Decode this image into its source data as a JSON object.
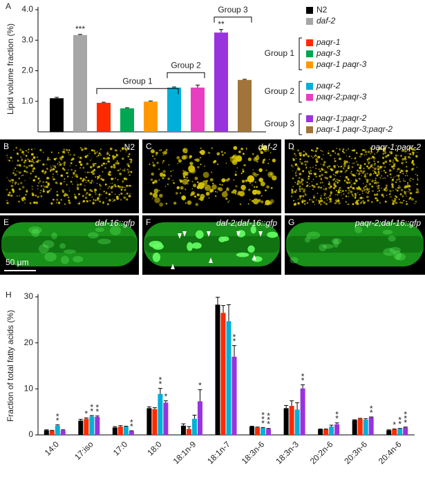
{
  "chart_data": [
    {
      "type": "bar",
      "panel": "A",
      "ylabel": "Lipid volume fraction (%)",
      "ylim": [
        0,
        4
      ],
      "yticks": [
        {
          "value": 1,
          "label": "1.0"
        },
        {
          "value": 2,
          "label": "2.0"
        },
        {
          "value": 3,
          "label": "3.0"
        },
        {
          "value": 4,
          "label": "4.0"
        }
      ],
      "categories": [
        null
      ],
      "series": [
        {
          "name": "N2",
          "color": "#000000",
          "values": [
            1.1
          ],
          "errors": [
            0.03
          ]
        },
        {
          "name": "daf-2",
          "italic": true,
          "color": "#a6a6a6",
          "values": [
            3.17
          ],
          "errors": [
            0.02
          ],
          "significance": [
            "***"
          ]
        },
        {
          "name": "paqr-1",
          "italic": true,
          "group": "Group 1",
          "color": "#ff2a00",
          "values": [
            0.95
          ],
          "errors": [
            0.02
          ]
        },
        {
          "name": "paqr-3",
          "italic": true,
          "group": "Group 1",
          "color": "#00a651",
          "values": [
            0.77
          ],
          "errors": [
            0.02
          ]
        },
        {
          "name": "paqr-1 paqr-3",
          "italic": true,
          "group": "Group 1",
          "color": "#ff9900",
          "values": [
            0.99
          ],
          "errors": [
            0.02
          ]
        },
        {
          "name": "paqr-2",
          "italic": true,
          "group": "Group 2",
          "color": "#00b0d8",
          "values": [
            1.45
          ],
          "errors": [
            0.02
          ]
        },
        {
          "name": "paqr-2;paqr-3",
          "italic": true,
          "group": "Group 2",
          "color": "#e83fc0",
          "values": [
            1.45
          ],
          "errors": [
            0.08
          ]
        },
        {
          "name": "paqr-1;paqr-2",
          "italic": true,
          "group": "Group 3",
          "color": "#9933dd",
          "values": [
            3.25
          ],
          "errors": [
            0.1
          ],
          "significance": [
            "**"
          ]
        },
        {
          "name": "paqr-1 paqr-3;paqr-2",
          "italic": true,
          "group": "Group 3",
          "color": "#a0743a",
          "values": [
            1.7
          ],
          "errors": [
            0.02
          ]
        }
      ]
    },
    {
      "type": "bar",
      "panel": "H",
      "ylabel": "Fraction of total fatty acids (%)",
      "ylim": [
        0,
        30
      ],
      "yticks": [
        0,
        10,
        20,
        30
      ],
      "categories": [
        "14:0",
        "17:iso",
        "17:0",
        "18:0",
        "18:1n-9",
        "18:1n-7",
        "18:3n-6",
        "18:3n-3",
        "20:2n-6",
        "20:3n-6",
        "20:4n-6"
      ],
      "series": [
        {
          "color": "#000000",
          "values": [
            1.0,
            3.1,
            1.6,
            5.8,
            2.0,
            28.3,
            1.8,
            5.8,
            1.2,
            3.2,
            1.0
          ],
          "errors": [
            0.1,
            0.3,
            0.2,
            0.3,
            0.4,
            1.6,
            0.1,
            0.6,
            0.1,
            0.1,
            0.1
          ],
          "significance": [
            null,
            null,
            null,
            null,
            null,
            null,
            null,
            null,
            null,
            null,
            null
          ]
        },
        {
          "color": "#ff2a00",
          "values": [
            0.9,
            3.5,
            1.8,
            5.6,
            1.3,
            26.5,
            1.6,
            6.3,
            1.2,
            3.5,
            1.2
          ],
          "errors": [
            0.1,
            0.2,
            0.2,
            0.3,
            0.5,
            1.6,
            0.1,
            1.1,
            0.1,
            0.1,
            0.1
          ],
          "significance": [
            null,
            "*",
            null,
            null,
            null,
            null,
            null,
            null,
            null,
            null,
            "*"
          ]
        },
        {
          "color": "#00b0d8",
          "values": [
            2.0,
            4.0,
            1.8,
            8.9,
            3.5,
            24.7,
            1.5,
            5.5,
            1.8,
            3.3,
            1.3
          ],
          "errors": [
            0.2,
            0.2,
            0.1,
            1.2,
            0.8,
            3.6,
            0.1,
            1.5,
            0.3,
            0.2,
            0.1
          ],
          "significance": [
            "**",
            "**",
            null,
            "**",
            null,
            null,
            "***",
            null,
            null,
            null,
            "**"
          ]
        },
        {
          "color": "#9933dd",
          "values": [
            1.0,
            3.9,
            0.8,
            7.0,
            7.3,
            17.0,
            1.3,
            10.1,
            2.3,
            3.8,
            1.6
          ],
          "errors": [
            0.1,
            0.2,
            0.1,
            0.4,
            2.5,
            2.4,
            0.1,
            0.8,
            0.3,
            0.1,
            0.1
          ],
          "significance": [
            null,
            "**",
            "**",
            "*",
            "*",
            "**",
            "***",
            "**",
            "**",
            "**",
            "***"
          ]
        }
      ]
    }
  ],
  "image_panels": [
    {
      "letter": "B",
      "label": "N2",
      "tint": "#d8c400"
    },
    {
      "letter": "C",
      "label": "daf-2",
      "italic": true,
      "tint": "#d8c400"
    },
    {
      "letter": "D",
      "label": "paqr-1;paqr-2",
      "italic": true,
      "tint": "#d8c400"
    },
    {
      "letter": "E",
      "label": "daf-16::gfp",
      "italic": true,
      "tint": "#22c022",
      "scale_bar": "50 μm"
    },
    {
      "letter": "F",
      "label": "daf-2;daf-16::gfp",
      "italic": true,
      "tint": "#22c022"
    },
    {
      "letter": "G",
      "label": "paqr-2;daf-16::gfp",
      "italic": true,
      "tint": "#22c022"
    }
  ]
}
